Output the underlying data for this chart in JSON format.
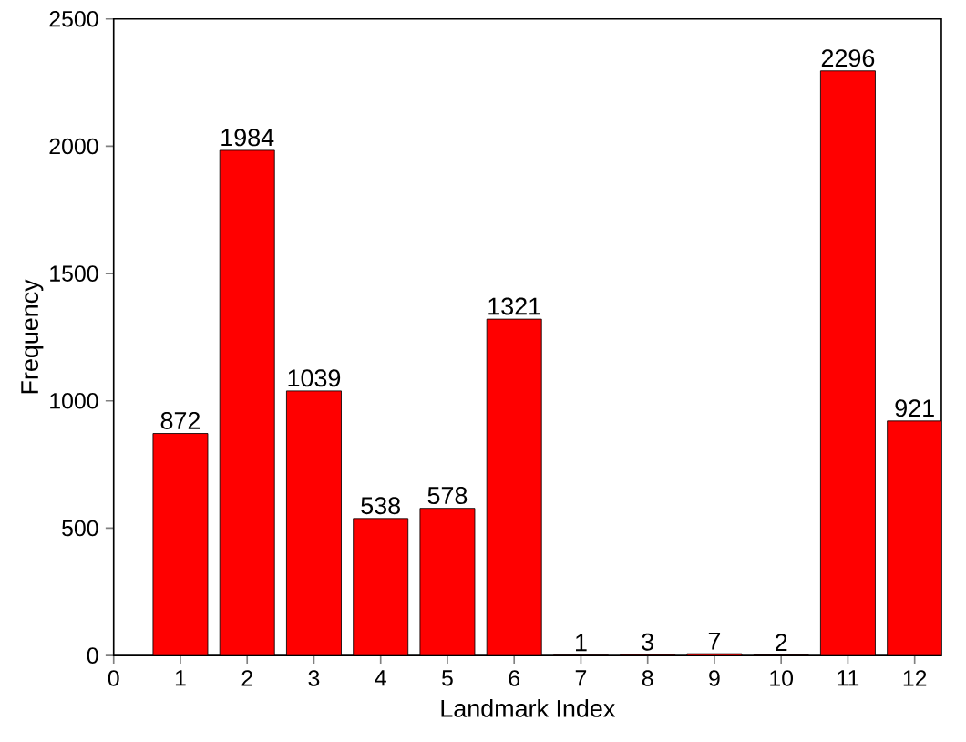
{
  "chart_data": {
    "type": "bar",
    "xlabel": "Landmark Index",
    "ylabel": "Frequency",
    "x": [
      1,
      2,
      3,
      4,
      5,
      6,
      7,
      8,
      9,
      10,
      11,
      12
    ],
    "values": [
      872,
      1984,
      1039,
      538,
      578,
      1321,
      1,
      3,
      7,
      2,
      2296,
      921
    ],
    "color": "#ff0000",
    "xlim": [
      0,
      12.4
    ],
    "xticks": [
      0,
      1,
      2,
      3,
      4,
      5,
      6,
      7,
      8,
      9,
      10,
      11,
      12
    ],
    "ylim": [
      0,
      2500
    ],
    "yticks": [
      0,
      500,
      1000,
      1500,
      2000,
      2500
    ],
    "data_labels": true
  }
}
